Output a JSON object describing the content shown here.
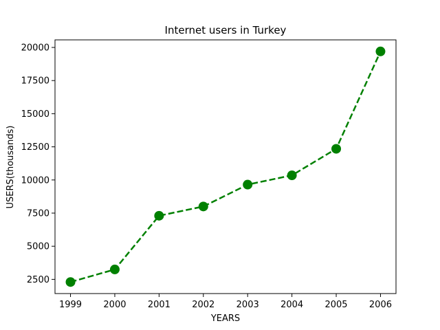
{
  "chart_data": {
    "type": "line",
    "title": "Internet users in Turkey",
    "xlabel": "YEARS",
    "ylabel": "USERS(thousands)",
    "x": [
      "1999",
      "2000",
      "2001",
      "2002",
      "2003",
      "2004",
      "2005",
      "2006"
    ],
    "series": [
      {
        "values": [
          2300,
          3250,
          7300,
          8000,
          9650,
          10350,
          12350,
          19700
        ],
        "color": "#008000",
        "line_style": "dashed",
        "marker": "circle"
      }
    ],
    "ylim": [
      1430,
      20570
    ],
    "yticks": [
      2500,
      5000,
      7500,
      10000,
      12500,
      15000,
      17500,
      20000
    ],
    "ytick_labels": [
      "2500",
      "5000",
      "7500",
      "10000",
      "12500",
      "15000",
      "17500",
      "20000"
    ],
    "grid": false,
    "legend": "none"
  }
}
